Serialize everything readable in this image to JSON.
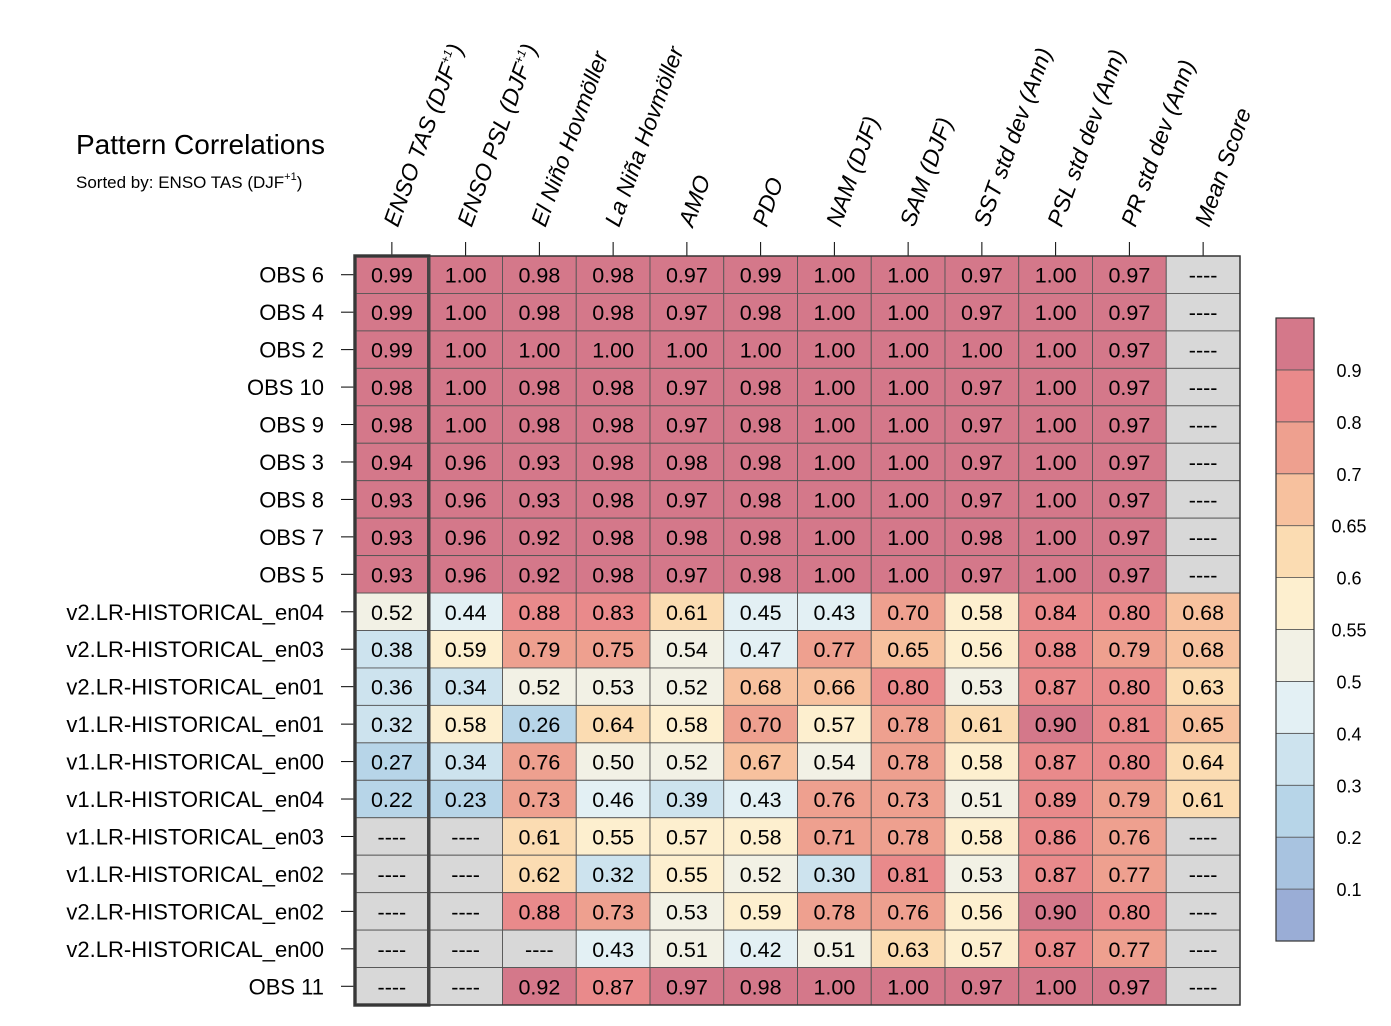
{
  "chart_data": {
    "type": "heatmap",
    "title": "Pattern Correlations",
    "subtitle": "Sorted by: ENSO TAS (DJF",
    "subtitle_superscript": "+1",
    "subtitle_close": ")",
    "columns": [
      {
        "label": "ENSO TAS (DJF",
        "sup": "+1",
        "close": ")"
      },
      {
        "label": "ENSO PSL (DJF",
        "sup": "+1",
        "close": ")"
      },
      {
        "label": "El Niño Hovmöller"
      },
      {
        "label": "La Niña Hovmöller"
      },
      {
        "label": "AMO"
      },
      {
        "label": "PDO"
      },
      {
        "label": "NAM (DJF)"
      },
      {
        "label": "SAM (DJF)"
      },
      {
        "label": "SST std dev (Ann)"
      },
      {
        "label": "PSL std dev (Ann)"
      },
      {
        "label": "PR std dev (Ann)"
      },
      {
        "label": "Mean Score"
      }
    ],
    "rows": [
      "OBS 6",
      "OBS 4",
      "OBS 2",
      "OBS 10",
      "OBS 9",
      "OBS 3",
      "OBS 8",
      "OBS 7",
      "OBS 5",
      "v2.LR-HISTORICAL_en04",
      "v2.LR-HISTORICAL_en03",
      "v2.LR-HISTORICAL_en01",
      "v1.LR-HISTORICAL_en01",
      "v1.LR-HISTORICAL_en00",
      "v1.LR-HISTORICAL_en04",
      "v1.LR-HISTORICAL_en03",
      "v1.LR-HISTORICAL_en02",
      "v2.LR-HISTORICAL_en02",
      "v2.LR-HISTORICAL_en00",
      "OBS 11"
    ],
    "values": [
      [
        "0.99",
        "1.00",
        "0.98",
        "0.98",
        "0.97",
        "0.99",
        "1.00",
        "1.00",
        "0.97",
        "1.00",
        "0.97",
        "----"
      ],
      [
        "0.99",
        "1.00",
        "0.98",
        "0.98",
        "0.97",
        "0.98",
        "1.00",
        "1.00",
        "0.97",
        "1.00",
        "0.97",
        "----"
      ],
      [
        "0.99",
        "1.00",
        "1.00",
        "1.00",
        "1.00",
        "1.00",
        "1.00",
        "1.00",
        "1.00",
        "1.00",
        "0.97",
        "----"
      ],
      [
        "0.98",
        "1.00",
        "0.98",
        "0.98",
        "0.97",
        "0.98",
        "1.00",
        "1.00",
        "0.97",
        "1.00",
        "0.97",
        "----"
      ],
      [
        "0.98",
        "1.00",
        "0.98",
        "0.98",
        "0.97",
        "0.98",
        "1.00",
        "1.00",
        "0.97",
        "1.00",
        "0.97",
        "----"
      ],
      [
        "0.94",
        "0.96",
        "0.93",
        "0.98",
        "0.98",
        "0.98",
        "1.00",
        "1.00",
        "0.97",
        "1.00",
        "0.97",
        "----"
      ],
      [
        "0.93",
        "0.96",
        "0.93",
        "0.98",
        "0.97",
        "0.98",
        "1.00",
        "1.00",
        "0.97",
        "1.00",
        "0.97",
        "----"
      ],
      [
        "0.93",
        "0.96",
        "0.92",
        "0.98",
        "0.98",
        "0.98",
        "1.00",
        "1.00",
        "0.98",
        "1.00",
        "0.97",
        "----"
      ],
      [
        "0.93",
        "0.96",
        "0.92",
        "0.98",
        "0.97",
        "0.98",
        "1.00",
        "1.00",
        "0.97",
        "1.00",
        "0.97",
        "----"
      ],
      [
        "0.52",
        "0.44",
        "0.88",
        "0.83",
        "0.61",
        "0.45",
        "0.43",
        "0.70",
        "0.58",
        "0.84",
        "0.80",
        "0.68"
      ],
      [
        "0.38",
        "0.59",
        "0.79",
        "0.75",
        "0.54",
        "0.47",
        "0.77",
        "0.65",
        "0.56",
        "0.88",
        "0.79",
        "0.68"
      ],
      [
        "0.36",
        "0.34",
        "0.52",
        "0.53",
        "0.52",
        "0.68",
        "0.66",
        "0.80",
        "0.53",
        "0.87",
        "0.80",
        "0.63"
      ],
      [
        "0.32",
        "0.58",
        "0.26",
        "0.64",
        "0.58",
        "0.70",
        "0.57",
        "0.78",
        "0.61",
        "0.90",
        "0.81",
        "0.65"
      ],
      [
        "0.27",
        "0.34",
        "0.76",
        "0.50",
        "0.52",
        "0.67",
        "0.54",
        "0.78",
        "0.58",
        "0.87",
        "0.80",
        "0.64"
      ],
      [
        "0.22",
        "0.23",
        "0.73",
        "0.46",
        "0.39",
        "0.43",
        "0.76",
        "0.73",
        "0.51",
        "0.89",
        "0.79",
        "0.61"
      ],
      [
        "----",
        "----",
        "0.61",
        "0.55",
        "0.57",
        "0.58",
        "0.71",
        "0.78",
        "0.58",
        "0.86",
        "0.76",
        "----"
      ],
      [
        "----",
        "----",
        "0.62",
        "0.32",
        "0.55",
        "0.52",
        "0.30",
        "0.81",
        "0.53",
        "0.87",
        "0.77",
        "----"
      ],
      [
        "----",
        "----",
        "0.88",
        "0.73",
        "0.53",
        "0.59",
        "0.78",
        "0.76",
        "0.56",
        "0.90",
        "0.80",
        "----"
      ],
      [
        "----",
        "----",
        "----",
        "0.43",
        "0.51",
        "0.42",
        "0.51",
        "0.63",
        "0.57",
        "0.87",
        "0.77",
        "----"
      ],
      [
        "----",
        "----",
        "0.92",
        "0.87",
        "0.97",
        "0.98",
        "1.00",
        "1.00",
        "0.97",
        "1.00",
        "0.97",
        "----"
      ]
    ],
    "missing_marker": "----",
    "highlighted_column": "ENSO TAS (DJF+1)",
    "colorbar": {
      "levels": [
        0.1,
        0.2,
        0.3,
        0.4,
        0.5,
        0.55,
        0.6,
        0.65,
        0.7,
        0.8,
        0.9
      ],
      "tick_labels": [
        "0.1",
        "0.2",
        "0.3",
        "0.4",
        "0.5",
        "0.55",
        "0.6",
        "0.65",
        "0.7",
        "0.8",
        "0.9"
      ],
      "colors": [
        "#9aadd6",
        "#a8c3e0",
        "#b7d5e8",
        "#cde3ee",
        "#e3f0f4",
        "#f2f1e5",
        "#fdefcf",
        "#fbdcb2",
        "#f7c19e",
        "#eea08f",
        "#e98a8b",
        "#d4788a"
      ],
      "missing_color": "#d8d8d8",
      "placement": "right"
    }
  }
}
